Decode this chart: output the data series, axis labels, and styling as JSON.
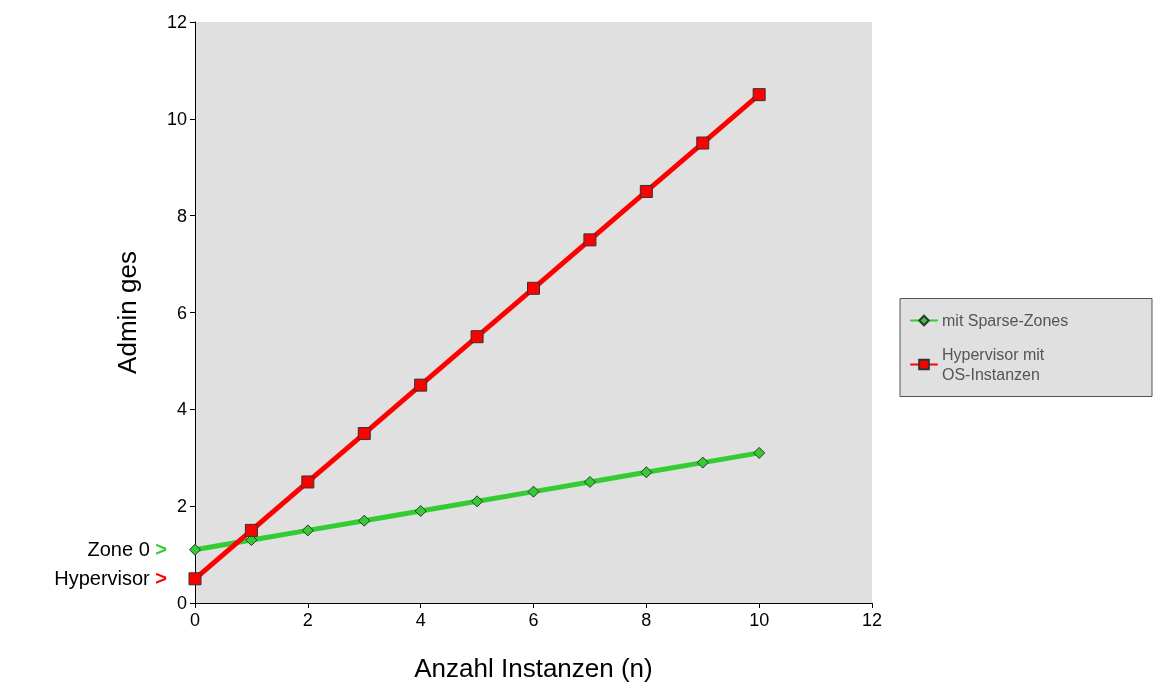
{
  "chart_data": {
    "type": "line",
    "xlabel": "Anzahl Instanzen (n)",
    "ylabel": "Admin ges",
    "x": [
      0,
      1,
      2,
      3,
      4,
      5,
      6,
      7,
      8,
      9,
      10
    ],
    "series": [
      {
        "name": "mit Sparse-Zones",
        "color": "#33cc33",
        "marker": "diamond",
        "values": [
          1.1,
          1.3,
          1.5,
          1.7,
          1.9,
          2.1,
          2.3,
          2.5,
          2.7,
          2.9,
          3.1
        ]
      },
      {
        "name": "Hypervisor mit OS-Instanzen",
        "color": "#ff0000",
        "marker": "square",
        "values": [
          0.5,
          1.5,
          2.5,
          3.5,
          4.5,
          5.5,
          6.5,
          7.5,
          8.5,
          9.5,
          10.5
        ]
      }
    ],
    "annotations": [
      {
        "text": "Zone 0 >",
        "x": 0,
        "y": 1.1
      },
      {
        "text": "Hypervisor >",
        "x": 0,
        "y": 0.5
      }
    ],
    "xlim": [
      0,
      12
    ],
    "xticks": [
      0,
      2,
      4,
      6,
      8,
      10,
      12
    ],
    "ylim": [
      0,
      12
    ],
    "yticks": [
      0,
      2,
      4,
      6,
      8,
      10,
      12
    ],
    "grid": false,
    "legend": "right",
    "line_style": "solid"
  }
}
